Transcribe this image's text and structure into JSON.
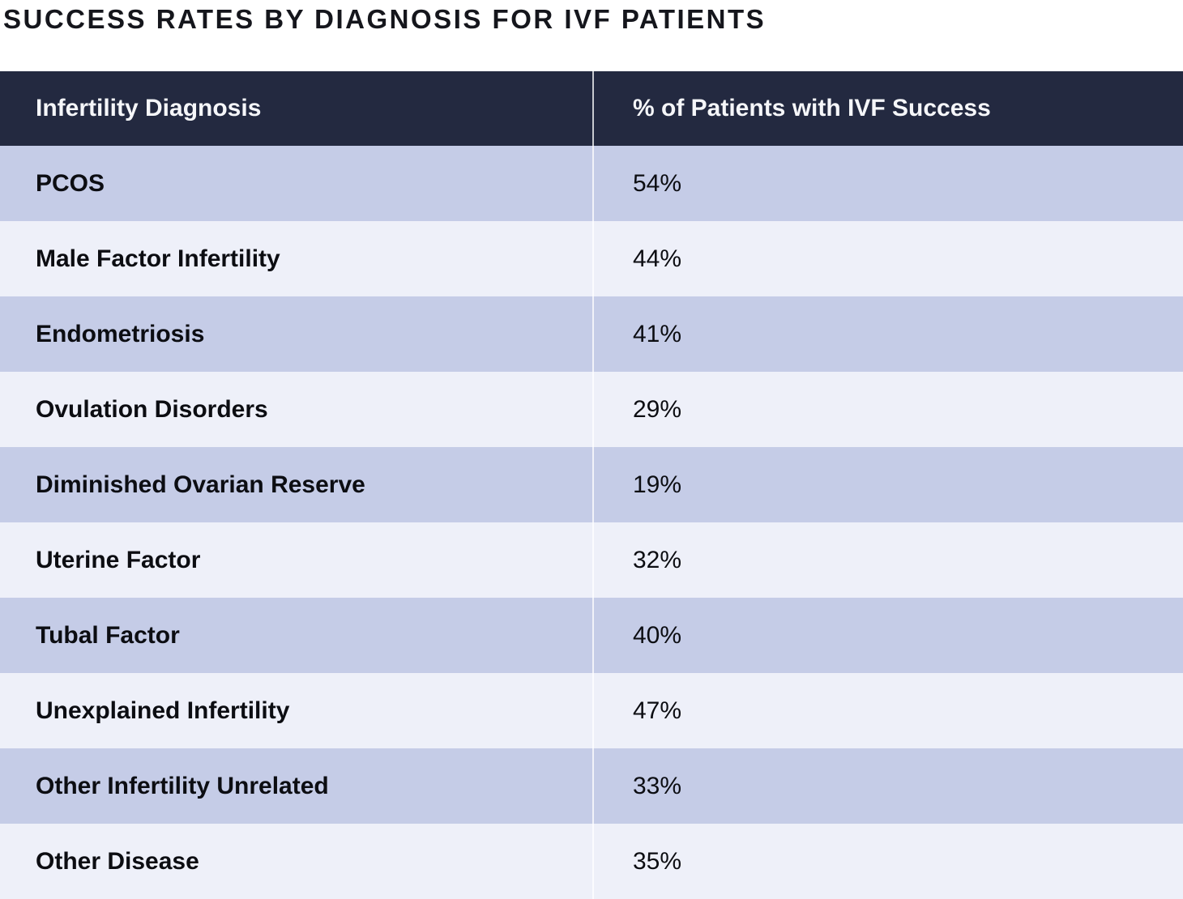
{
  "title": "SUCCESS RATES BY DIAGNOSIS FOR IVF PATIENTS",
  "colors": {
    "header_bg": "#232940",
    "header_text": "#f5f6f9",
    "row_lavender": "#c5cce7",
    "row_light": "#eef0f9",
    "divider": "#ffffff",
    "body_text": "#0c0d12"
  },
  "table": {
    "columns": [
      "Infertility Diagnosis",
      "% of Patients with IVF Success"
    ],
    "rows": [
      {
        "diagnosis": "PCOS",
        "value": "54%"
      },
      {
        "diagnosis": "Male Factor Infertility",
        "value": "44%"
      },
      {
        "diagnosis": "Endometriosis",
        "value": "41%"
      },
      {
        "diagnosis": "Ovulation Disorders",
        "value": "29%"
      },
      {
        "diagnosis": "Diminished Ovarian Reserve",
        "value": "19%"
      },
      {
        "diagnosis": "Uterine Factor",
        "value": "32%"
      },
      {
        "diagnosis": "Tubal Factor",
        "value": "40%"
      },
      {
        "diagnosis": "Unexplained Infertility",
        "value": "47%"
      },
      {
        "diagnosis": "Other Infertility Unrelated",
        "value": "33%"
      },
      {
        "diagnosis": "Other Disease",
        "value": "35%"
      }
    ]
  },
  "chart_data": {
    "type": "table",
    "title": "SUCCESS RATES BY DIAGNOSIS FOR IVF PATIENTS",
    "columns": [
      "Infertility Diagnosis",
      "% of Patients with IVF Success"
    ],
    "categories": [
      "PCOS",
      "Male Factor Infertility",
      "Endometriosis",
      "Ovulation Disorders",
      "Diminished Ovarian Reserve",
      "Uterine Factor",
      "Tubal Factor",
      "Unexplained Infertility",
      "Other Infertility Unrelated",
      "Other Disease"
    ],
    "values": [
      54,
      44,
      41,
      29,
      19,
      32,
      40,
      47,
      33,
      35
    ],
    "values_unit": "%"
  }
}
